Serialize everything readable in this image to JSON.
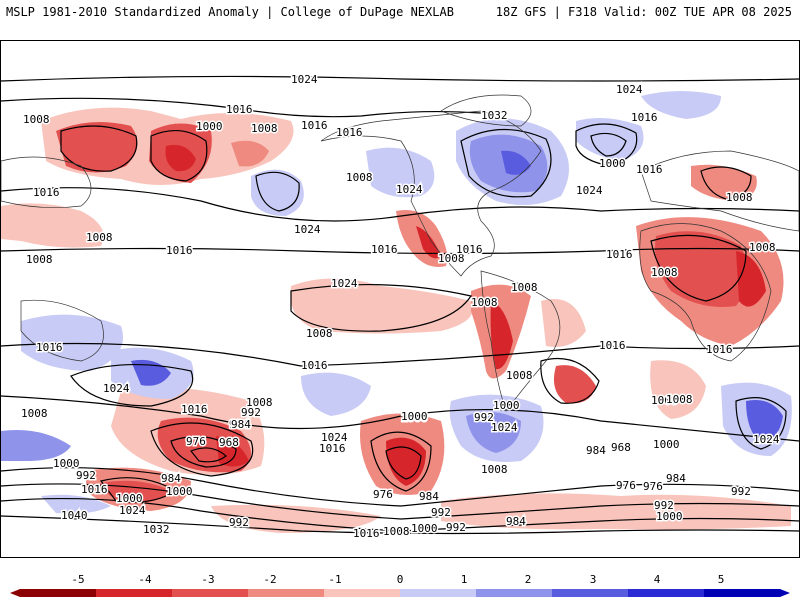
{
  "header": {
    "left_title": "MSLP 1981-2010 Standardized Anomaly | College of DuPage NEXLAB",
    "right_title": "18Z GFS | F318 Valid: 00Z TUE APR 08 2025"
  },
  "colorbar": {
    "ticks": [
      "-5",
      "-4",
      "-3",
      "-2",
      "-1",
      "0",
      "1",
      "2",
      "3",
      "4",
      "5"
    ],
    "colors": {
      "-5": "#8b0000",
      "-4": "#d7262b",
      "-3": "#e35050",
      "-2": "#ef8a80",
      "-1": "#f8c4bb",
      "0": "#ffffff",
      "1": "#c8cbf5",
      "2": "#8f93ea",
      "3": "#5a5cdf",
      "4": "#2b2bd6",
      "5": "#0000b4"
    }
  },
  "isobar_labels": [
    "1024",
    "1016",
    "1008",
    "1000",
    "1008",
    "1016",
    "1008",
    "1016",
    "1032",
    "1024",
    "1016",
    "1000",
    "1016",
    "1024",
    "1008",
    "1016",
    "1008",
    "1024",
    "1024",
    "1016",
    "1008",
    "1016",
    "1008",
    "1016",
    "1016",
    "1024",
    "1008",
    "1008",
    "1008",
    "1008",
    "1008",
    "1008",
    "1008",
    "1016",
    "1016",
    "1016",
    "1016",
    "1008",
    "1008",
    "1024",
    "1016",
    "1000",
    "984",
    "976",
    "968",
    "1000",
    "984",
    "1024",
    "1016",
    "1000",
    "992",
    "984",
    "992",
    "1000",
    "1016",
    "1024",
    "1000",
    "992",
    "976",
    "984",
    "1008",
    "1000",
    "1024",
    "1040",
    "1032",
    "992",
    "1016",
    "1008",
    "1000",
    "992",
    "984",
    "976",
    "968",
    "984",
    "992",
    "1000",
    "992",
    "984",
    "976",
    "992",
    "1000",
    "1024",
    "1008"
  ]
}
